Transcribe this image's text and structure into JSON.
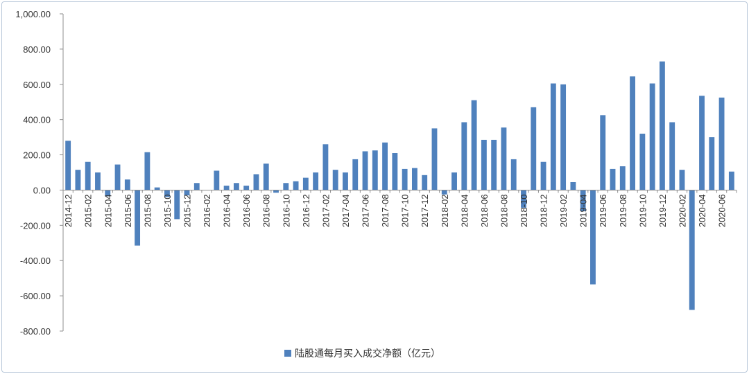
{
  "chart_data": {
    "type": "bar",
    "title": "",
    "xlabel": "",
    "ylabel": "",
    "ylim": [
      -800,
      1000
    ],
    "yticks": [
      1000,
      800,
      600,
      400,
      200,
      0,
      -200,
      -400,
      -600,
      -800
    ],
    "ytick_labels": [
      "1,000.00",
      "800.00",
      "600.00",
      "400.00",
      "200.00",
      "0.00",
      "-200.00",
      "-400.00",
      "-600.00",
      "-800.00"
    ],
    "categories": [
      "2014-12",
      "2015-01",
      "2015-02",
      "2015-03",
      "2015-04",
      "2015-05",
      "2015-06",
      "2015-07",
      "2015-08",
      "2015-09",
      "2015-10",
      "2015-11",
      "2015-12",
      "2016-01",
      "2016-02",
      "2016-03",
      "2016-04",
      "2016-05",
      "2016-06",
      "2016-07",
      "2016-08",
      "2016-09",
      "2016-10",
      "2016-11",
      "2016-12",
      "2017-01",
      "2017-02",
      "2017-03",
      "2017-04",
      "2017-05",
      "2017-06",
      "2017-07",
      "2017-08",
      "2017-09",
      "2017-10",
      "2017-11",
      "2017-12",
      "2018-01",
      "2018-02",
      "2018-03",
      "2018-04",
      "2018-05",
      "2018-06",
      "2018-07",
      "2018-08",
      "2018-09",
      "2018-10",
      "2018-11",
      "2018-12",
      "2019-01",
      "2019-02",
      "2019-03",
      "2019-04",
      "2019-05",
      "2019-06",
      "2019-07",
      "2019-08",
      "2019-09",
      "2019-10",
      "2019-11",
      "2019-12",
      "2020-01",
      "2020-02",
      "2020-03",
      "2020-04",
      "2020-05",
      "2020-06",
      "2020-07"
    ],
    "x_tick_labels": [
      "2014-12",
      "2015-02",
      "2015-04",
      "2015-06",
      "2015-08",
      "2015-10",
      "2015-12",
      "2016-02",
      "2016-04",
      "2016-06",
      "2016-08",
      "2016-10",
      "2016-12",
      "2017-02",
      "2017-04",
      "2017-06",
      "2017-08",
      "2017-10",
      "2017-12",
      "2018-02",
      "2018-04",
      "2018-06",
      "2018-08",
      "2018-10",
      "2018-12",
      "2019-02",
      "2019-04",
      "2019-06",
      "2019-08",
      "2019-10",
      "2019-12",
      "2020-02",
      "2020-04",
      "2020-06"
    ],
    "series": [
      {
        "name": "陆股通每月买入成交净额（亿元）",
        "color": "#4f81bd",
        "values": [
          280,
          115,
          160,
          100,
          -35,
          145,
          60,
          -315,
          215,
          15,
          -40,
          -165,
          -30,
          40,
          0,
          110,
          25,
          40,
          25,
          90,
          150,
          -15,
          40,
          50,
          70,
          100,
          260,
          115,
          100,
          175,
          220,
          225,
          270,
          210,
          120,
          125,
          85,
          350,
          -25,
          100,
          385,
          510,
          285,
          285,
          355,
          175,
          -100,
          470,
          160,
          605,
          600,
          45,
          -120,
          -535,
          425,
          120,
          135,
          645,
          320,
          605,
          730,
          385,
          115,
          -680,
          535,
          300,
          525,
          105
        ]
      }
    ],
    "legend": {
      "position": "bottom-center"
    },
    "grid": false
  }
}
